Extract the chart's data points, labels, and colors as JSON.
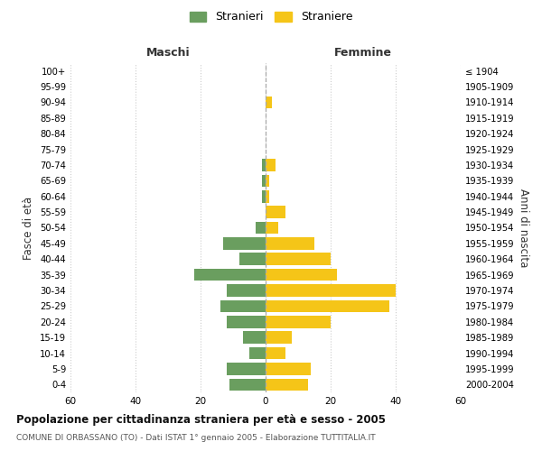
{
  "age_groups": [
    "0-4",
    "5-9",
    "10-14",
    "15-19",
    "20-24",
    "25-29",
    "30-34",
    "35-39",
    "40-44",
    "45-49",
    "50-54",
    "55-59",
    "60-64",
    "65-69",
    "70-74",
    "75-79",
    "80-84",
    "85-89",
    "90-94",
    "95-99",
    "100+"
  ],
  "birth_years": [
    "2000-2004",
    "1995-1999",
    "1990-1994",
    "1985-1989",
    "1980-1984",
    "1975-1979",
    "1970-1974",
    "1965-1969",
    "1960-1964",
    "1955-1959",
    "1950-1954",
    "1945-1949",
    "1940-1944",
    "1935-1939",
    "1930-1934",
    "1925-1929",
    "1920-1924",
    "1915-1919",
    "1910-1914",
    "1905-1909",
    "≤ 1904"
  ],
  "maschi": [
    11,
    12,
    5,
    7,
    12,
    14,
    12,
    22,
    8,
    13,
    3,
    0,
    1,
    1,
    1,
    0,
    0,
    0,
    0,
    0,
    0
  ],
  "femmine": [
    13,
    14,
    6,
    8,
    20,
    38,
    40,
    22,
    20,
    15,
    4,
    6,
    1,
    1,
    3,
    0,
    0,
    0,
    2,
    0,
    0
  ],
  "color_maschi": "#6a9e5f",
  "color_femmine": "#f5c518",
  "title": "Popolazione per cittadinanza straniera per età e sesso - 2005",
  "subtitle": "COMUNE DI ORBASSANO (TO) - Dati ISTAT 1° gennaio 2005 - Elaborazione TUTTITALIA.IT",
  "xlabel_left": "Maschi",
  "xlabel_right": "Femmine",
  "ylabel_left": "Fasce di età",
  "ylabel_right": "Anni di nascita",
  "legend_maschi": "Stranieri",
  "legend_femmine": "Straniere",
  "xlim": 60,
  "background_color": "#ffffff",
  "grid_color": "#cccccc"
}
